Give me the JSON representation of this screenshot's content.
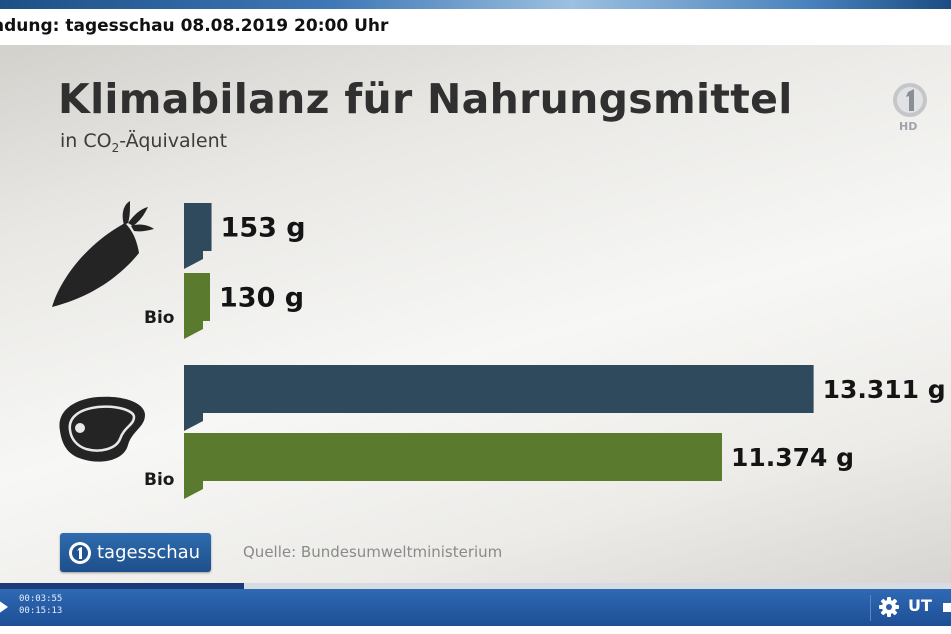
{
  "window": {
    "title": "ndung: tagesschau 08.08.2019 20:00 Uhr"
  },
  "graphic": {
    "title": "Klimabilanz für Nahrungsmittel",
    "subtitle_prefix": "in CO",
    "subtitle_sub": "2",
    "subtitle_suffix": "-Äquivalent",
    "source": "Quelle: Bundesumweltministerium",
    "logo_text": "tagesschau",
    "broadcaster_icon": "ard-one-hd-icon"
  },
  "chart_data": {
    "type": "bar",
    "orientation": "horizontal",
    "unit": "g",
    "groups": [
      {
        "icon": "carrot-icon",
        "bars": [
          {
            "label": "",
            "value": 153,
            "value_label": "153 g",
            "color": "#2f4a5c"
          },
          {
            "label": "Bio",
            "value": 130,
            "value_label": "130 g",
            "color": "#5a7a2e"
          }
        ]
      },
      {
        "icon": "steak-icon",
        "bars": [
          {
            "label": "",
            "value": 13311,
            "value_label": "13.311 g",
            "color": "#2f4a5c"
          },
          {
            "label": "Bio",
            "value": 11374,
            "value_label": "11.374 g",
            "color": "#5a7a2e"
          }
        ]
      }
    ]
  },
  "player": {
    "time_current": "00:03:55",
    "time_total": "00:15:13",
    "progress": 0.257,
    "play_icon": "play-icon",
    "settings_icon": "gear-icon",
    "subtitles_label": "UT",
    "colors": {
      "bar": "#2a5fa8",
      "accent": "#1b3a78"
    }
  }
}
